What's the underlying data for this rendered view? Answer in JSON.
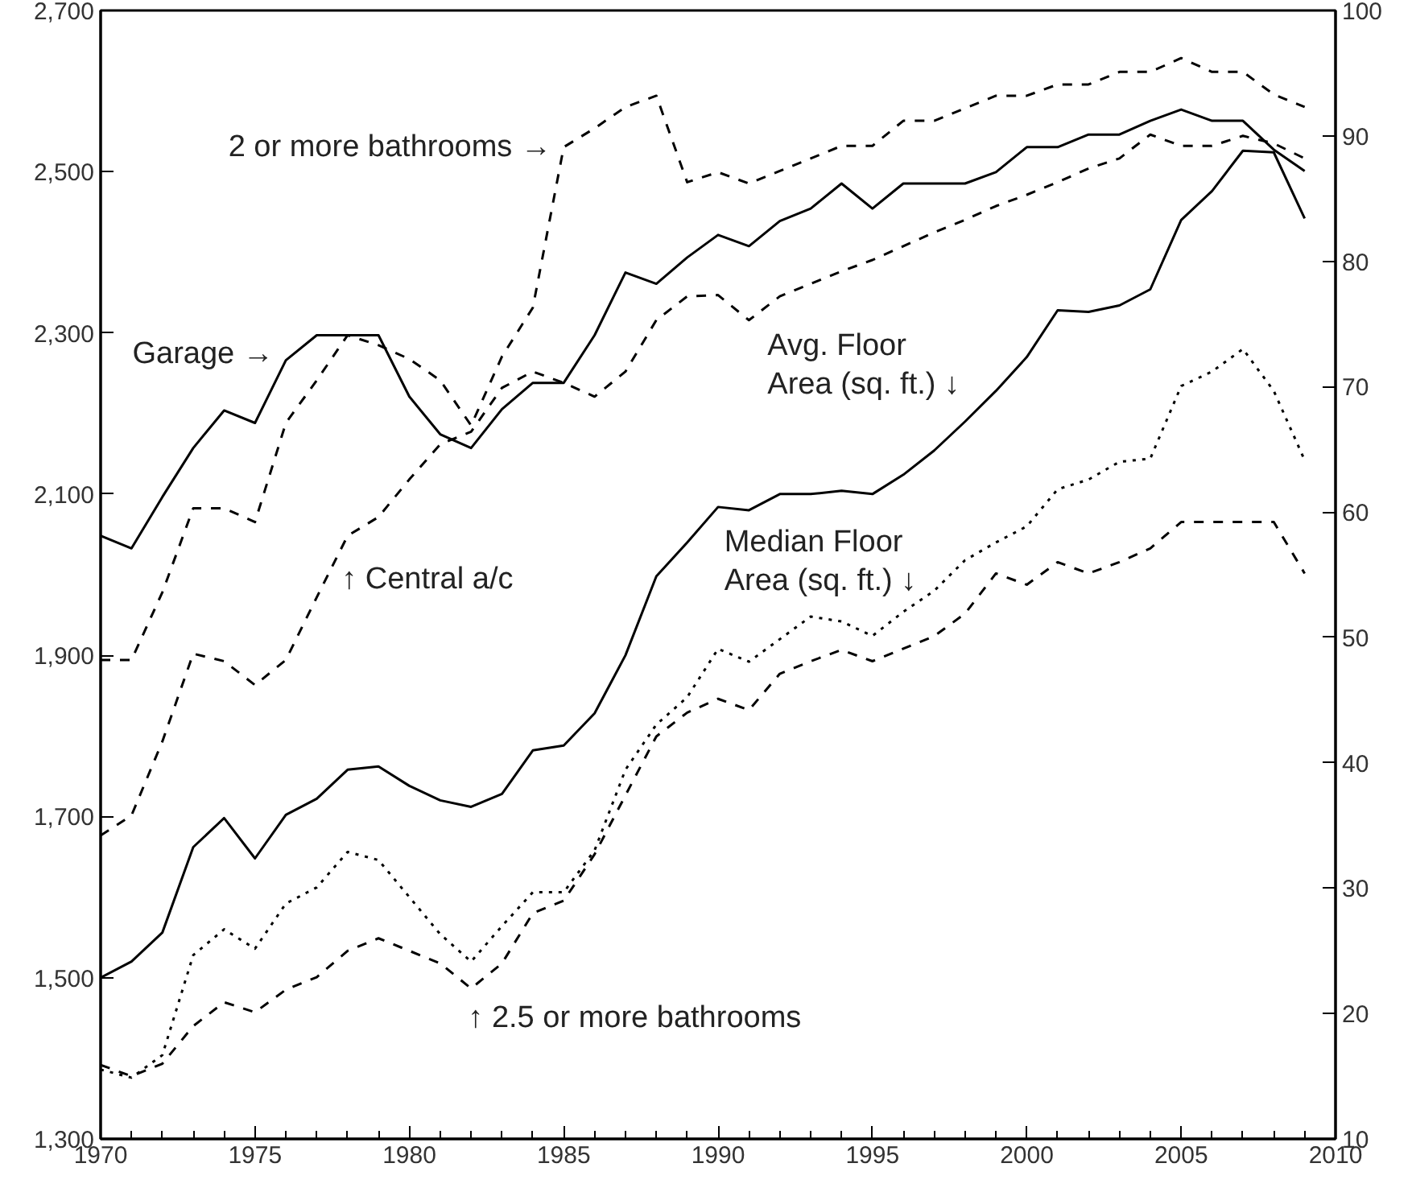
{
  "chart_data": {
    "type": "line",
    "x": [
      1970,
      1971,
      1972,
      1973,
      1974,
      1975,
      1976,
      1977,
      1978,
      1979,
      1980,
      1981,
      1982,
      1983,
      1984,
      1985,
      1986,
      1987,
      1988,
      1989,
      1990,
      1991,
      1992,
      1993,
      1994,
      1995,
      1996,
      1997,
      1998,
      1999,
      2000,
      2001,
      2002,
      2003,
      2004,
      2005,
      2006,
      2007,
      2008,
      2009
    ],
    "series": [
      {
        "name": "Avg. Floor Area (sq. ft.) ↓",
        "color": "#000000",
        "line_style": "solid",
        "values": [
          1500,
          1520,
          1556,
          1662,
          1698,
          1648,
          1702,
          1722,
          1758,
          1762,
          1738,
          1720,
          1712,
          1728,
          1782,
          1788,
          1828,
          1900,
          1998,
          2040,
          2084,
          2080,
          2100,
          2100,
          2104,
          2100,
          2124,
          2154,
          2190,
          2228,
          2270,
          2328,
          2326,
          2334,
          2354,
          2440,
          2476,
          2526,
          2524,
          2442
        ]
      },
      {
        "name": "Median Floor Area (sq. ft.) ↓",
        "color": "#000000",
        "line_style": "dotted",
        "values": [
          1386,
          1376,
          1404,
          1528,
          1560,
          1536,
          1592,
          1612,
          1656,
          1646,
          1600,
          1554,
          1520,
          1564,
          1606,
          1606,
          1658,
          1758,
          1814,
          1848,
          1908,
          1892,
          1920,
          1948,
          1942,
          1924,
          1954,
          1980,
          2018,
          2040,
          2060,
          2106,
          2118,
          2140,
          2144,
          2234,
          2252,
          2280,
          2228,
          2142
        ]
      },
      {
        "name": "↑ 2.5 or more bathrooms",
        "color": "#000000",
        "line_style": "dashed",
        "axis": "y2",
        "values": [
          15.9,
          15.0,
          16.0,
          19.0,
          20.9,
          20.1,
          21.9,
          22.9,
          25.0,
          26.0,
          25.0,
          24.0,
          22.0,
          24.0,
          28.0,
          29.0,
          32.7,
          37.4,
          42.1,
          44.0,
          45.1,
          44.2,
          47.1,
          48.1,
          49.0,
          48.1,
          49.1,
          50.1,
          51.9,
          55.1,
          54.2,
          56.0,
          55.1,
          56.0,
          57.1,
          59.2,
          59.2,
          59.2,
          59.2,
          55.1
        ]
      },
      {
        "name": "↑ Central a/c",
        "color": "#000000",
        "line_style": "dashed",
        "axis": "y2",
        "values": [
          34.2,
          35.8,
          41.7,
          48.7,
          48.1,
          46.2,
          48.2,
          53.2,
          58.1,
          59.6,
          62.6,
          65.4,
          66.4,
          69.9,
          71.2,
          70.3,
          69.2,
          71.2,
          75.3,
          77.2,
          77.3,
          75.3,
          77.2,
          78.2,
          79.2,
          80.1,
          81.2,
          82.3,
          83.3,
          84.4,
          85.3,
          86.3,
          87.4,
          88.2,
          90.1,
          89.2,
          89.2,
          90.0,
          89.4,
          88.2
        ]
      },
      {
        "name": "2 or more bathrooms →",
        "color": "#000000",
        "line_style": "dashed",
        "axis": "y2",
        "values": [
          48.2,
          48.2,
          53.6,
          60.3,
          60.3,
          59.2,
          67.1,
          70.5,
          74.1,
          73.3,
          72.2,
          70.5,
          66.9,
          72.4,
          76.3,
          89.1,
          90.6,
          92.3,
          93.2,
          86.3,
          87.1,
          86.2,
          87.2,
          88.2,
          89.2,
          89.2,
          91.2,
          91.2,
          92.2,
          93.2,
          93.2,
          94.1,
          94.1,
          95.1,
          95.1,
          96.2,
          95.1,
          95.1,
          93.3,
          92.3
        ]
      },
      {
        "name": "Garage →",
        "color": "#000000",
        "line_style": "solid",
        "axis": "y2",
        "values": [
          58.1,
          57.1,
          61.2,
          65.1,
          68.1,
          67.1,
          72.1,
          74.1,
          74.1,
          74.1,
          69.2,
          66.2,
          65.1,
          68.2,
          70.3,
          70.3,
          74.1,
          79.1,
          78.2,
          80.3,
          82.1,
          81.2,
          83.2,
          84.2,
          86.2,
          84.2,
          86.2,
          86.2,
          86.2,
          87.1,
          89.1,
          89.1,
          90.1,
          90.1,
          91.2,
          92.1,
          91.2,
          91.2,
          88.9,
          87.2
        ]
      }
    ],
    "xlim": [
      1970,
      2010
    ],
    "xticks": [
      1970,
      {
        "value": 1971,
        "label": null
      },
      {
        "value": 1972,
        "label": null
      },
      {
        "value": 1973,
        "label": null
      },
      {
        "value": 1974,
        "label": null
      },
      1975,
      {
        "value": 1976,
        "label": null
      },
      {
        "value": 1977,
        "label": null
      },
      {
        "value": 1978,
        "label": null
      },
      {
        "value": 1979,
        "label": null
      },
      1980,
      {
        "value": 1981,
        "label": null
      },
      {
        "value": 1982,
        "label": null
      },
      {
        "value": 1983,
        "label": null
      },
      {
        "value": 1984,
        "label": null
      },
      1985,
      {
        "value": 1986,
        "label": null
      },
      {
        "value": 1987,
        "label": null
      },
      {
        "value": 1988,
        "label": null
      },
      {
        "value": 1989,
        "label": null
      },
      1990,
      {
        "value": 1991,
        "label": null
      },
      {
        "value": 1992,
        "label": null
      },
      {
        "value": 1993,
        "label": null
      },
      {
        "value": 1994,
        "label": null
      },
      1995,
      {
        "value": 1996,
        "label": null
      },
      {
        "value": 1997,
        "label": null
      },
      {
        "value": 1998,
        "label": null
      },
      {
        "value": 1999,
        "label": null
      },
      2000,
      {
        "value": 2001,
        "label": null
      },
      {
        "value": 2002,
        "label": null
      },
      {
        "value": 2003,
        "label": null
      },
      {
        "value": 2004,
        "label": null
      },
      2005,
      {
        "value": 2006,
        "label": null
      },
      {
        "value": 2007,
        "label": null
      },
      {
        "value": 2008,
        "label": null
      },
      {
        "value": 2009,
        "label": null
      },
      2010
    ],
    "ylim": [
      1300,
      2700
    ],
    "yticks": [
      {
        "value": 1300,
        "label": "1,300"
      },
      {
        "value": 1500,
        "label": "1,500"
      },
      {
        "value": 1700,
        "label": "1,700"
      },
      {
        "value": 1900,
        "label": "1,900"
      },
      {
        "value": 2100,
        "label": "2,100"
      },
      {
        "value": 2300,
        "label": "2,300"
      },
      {
        "value": 2500,
        "label": "2,500"
      },
      {
        "value": 2700,
        "label": "2,700"
      }
    ],
    "y2lim": [
      10,
      100
    ],
    "y2ticks": [
      10,
      20,
      30,
      40,
      50,
      60,
      70,
      80,
      90,
      100
    ],
    "grid": false
  }
}
